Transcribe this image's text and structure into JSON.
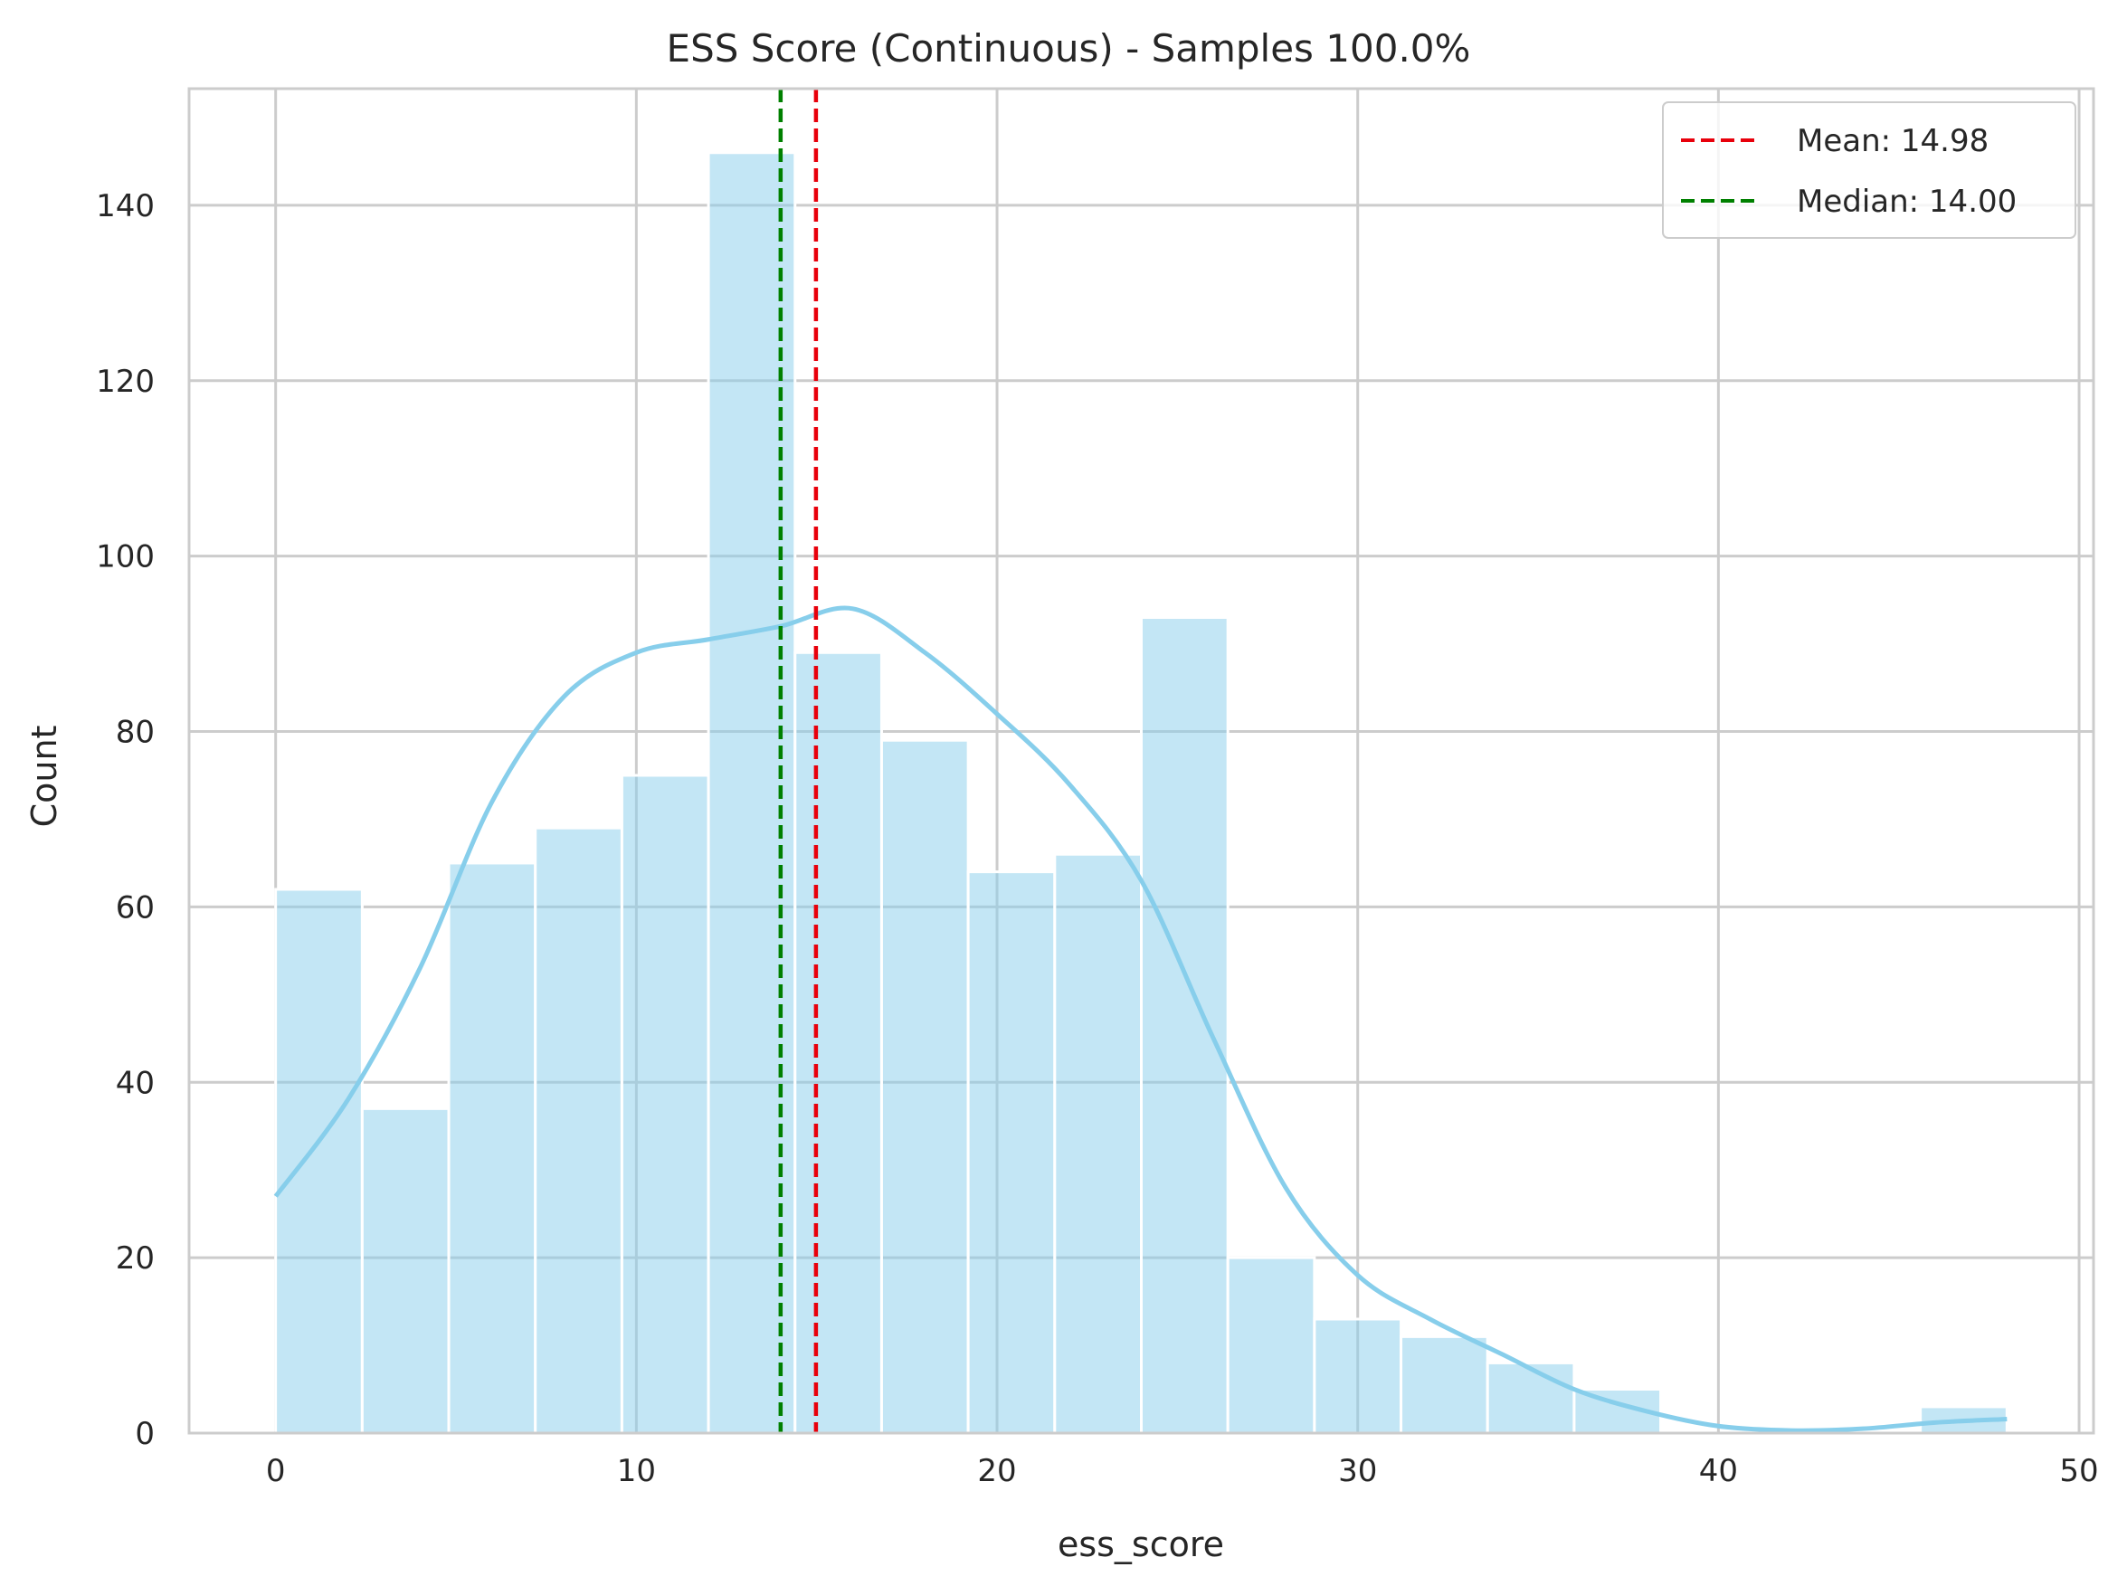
{
  "chart_data": {
    "type": "bar",
    "title": "ESS Score (Continuous) - Samples 100.0%",
    "xlabel": "ess_score",
    "ylabel": "Count",
    "xlim": [
      -2.4,
      50.4
    ],
    "ylim": [
      0,
      153.3
    ],
    "xticks": [
      0,
      10,
      20,
      30,
      40,
      50
    ],
    "yticks": [
      0,
      20,
      40,
      60,
      80,
      100,
      120,
      140
    ],
    "grid": true,
    "bins": {
      "edges": [
        0,
        2.4,
        4.8,
        7.2,
        9.6,
        12,
        14.4,
        16.8,
        19.2,
        21.6,
        24,
        26.4,
        28.8,
        31.2,
        33.6,
        36,
        38.4,
        40.8,
        43.2,
        45.6,
        48
      ],
      "counts": [
        62,
        37,
        65,
        69,
        75,
        146,
        89,
        79,
        64,
        66,
        93,
        20,
        13,
        11,
        8,
        5,
        0,
        0,
        0,
        3
      ]
    },
    "kde": {
      "x": [
        0,
        2,
        4,
        6,
        8,
        10,
        12,
        14,
        16,
        18,
        20,
        22,
        24,
        26,
        28,
        30,
        32,
        34,
        36,
        38,
        40,
        42,
        44,
        46,
        48
      ],
      "y": [
        27,
        38,
        53,
        72,
        84,
        89,
        90.5,
        92,
        94,
        89,
        82,
        74,
        63,
        45,
        28,
        18,
        13,
        9,
        5,
        2.5,
        0.8,
        0.3,
        0.5,
        1.2,
        1.6
      ]
    },
    "lines": [
      {
        "name": "Mean: 14.98",
        "x": 14.98,
        "color": "#e8000b",
        "style": "dashed"
      },
      {
        "name": "Median: 14.00",
        "x": 14.0,
        "color": "#008000",
        "style": "dashed"
      }
    ],
    "legend_position": "top-right",
    "colors": {
      "bar_fill": "#87ceeb",
      "kde_line": "#87ceeb",
      "grid": "#cccccc",
      "frame": "#cccccc"
    }
  }
}
